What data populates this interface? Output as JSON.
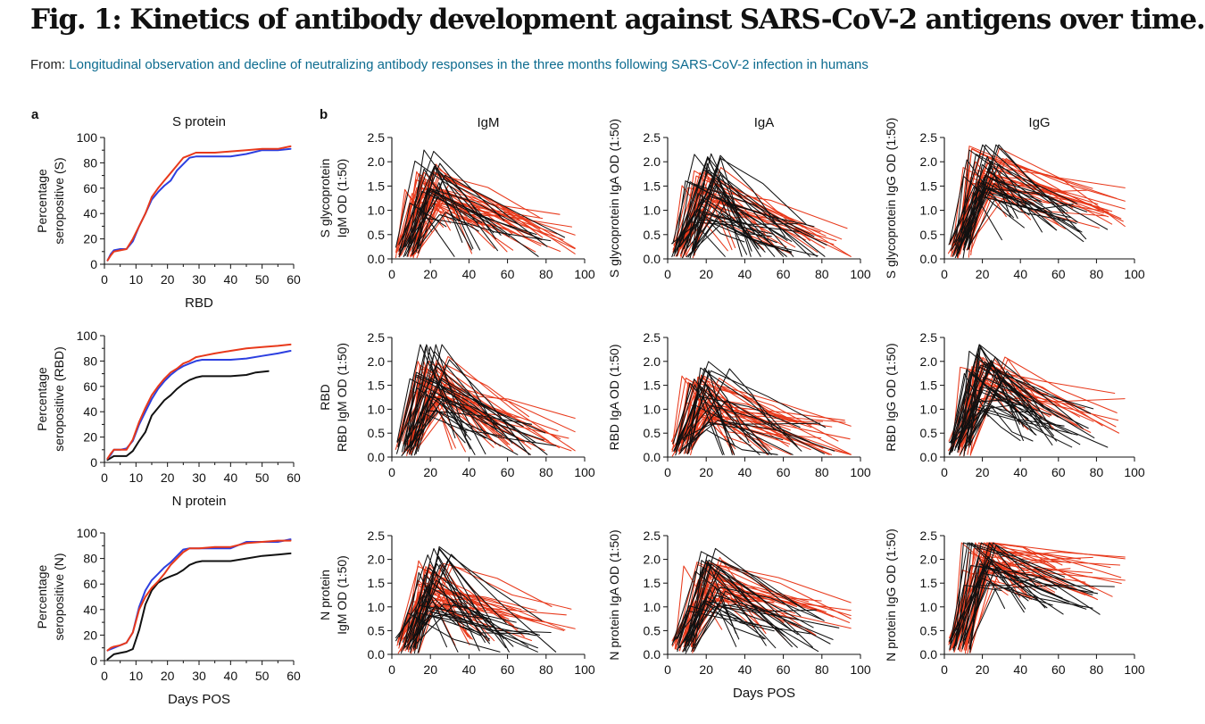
{
  "header": {
    "title": "Fig. 1: Kinetics of antibody development against SARS-CoV-2 antigens over time.",
    "from_label": "From:",
    "source_link": "Longitudinal observation and decline of neutralizing antibody responses in the three months following SARS-CoV-2 infection in humans"
  },
  "panel_labels": {
    "a": "a",
    "b": "b"
  },
  "colors": {
    "red": "#e8391b",
    "blue": "#2c3fe0",
    "black": "#111111"
  },
  "chart_data": [
    {
      "id": "a-s",
      "type": "line",
      "panel": "a",
      "title": "S protein",
      "xlabel": "RBD",
      "ylabel": [
        "Percentage",
        "seropositive (S)"
      ],
      "xlim": [
        0,
        60
      ],
      "ylim": [
        0,
        100
      ],
      "xticks": [
        0,
        10,
        20,
        30,
        40,
        50,
        60
      ],
      "yticks": [
        0,
        20,
        40,
        60,
        80,
        100
      ],
      "series": [
        {
          "color": "red",
          "x": [
            1,
            2,
            3,
            5,
            7,
            9,
            11,
            13,
            15,
            17,
            19,
            21,
            23,
            25,
            27,
            29,
            31,
            35,
            40,
            45,
            50,
            55,
            59
          ],
          "y": [
            3,
            7,
            10,
            11,
            12,
            20,
            30,
            40,
            53,
            60,
            66,
            72,
            78,
            84,
            86,
            88,
            88,
            88,
            89,
            90,
            91,
            91,
            93
          ]
        },
        {
          "color": "blue",
          "x": [
            1,
            2,
            3,
            5,
            7,
            9,
            11,
            13,
            15,
            17,
            19,
            21,
            23,
            25,
            27,
            29,
            31,
            35,
            40,
            45,
            50,
            55,
            59
          ],
          "y": [
            3,
            8,
            11,
            12,
            12,
            18,
            30,
            40,
            51,
            57,
            62,
            66,
            74,
            79,
            84,
            85,
            85,
            85,
            85,
            87,
            90,
            90,
            91
          ]
        }
      ]
    },
    {
      "id": "a-rbd",
      "type": "line",
      "panel": "a",
      "title": "",
      "xlabel": "N protein",
      "ylabel": [
        "Percentage",
        "seropositive (RBD)"
      ],
      "xlim": [
        0,
        60
      ],
      "ylim": [
        0,
        100
      ],
      "xticks": [
        0,
        10,
        20,
        30,
        40,
        50,
        60
      ],
      "yticks": [
        0,
        20,
        40,
        60,
        80,
        100
      ],
      "series": [
        {
          "color": "red",
          "x": [
            1,
            2,
            3,
            5,
            7,
            9,
            11,
            13,
            15,
            17,
            19,
            21,
            23,
            25,
            27,
            29,
            31,
            35,
            40,
            45,
            50,
            55,
            59
          ],
          "y": [
            3,
            7,
            10,
            10,
            10,
            18,
            32,
            43,
            53,
            60,
            66,
            71,
            74,
            78,
            80,
            83,
            84,
            86,
            88,
            90,
            91,
            92,
            93
          ]
        },
        {
          "color": "blue",
          "x": [
            1,
            2,
            3,
            5,
            7,
            9,
            11,
            13,
            15,
            17,
            19,
            21,
            23,
            25,
            27,
            29,
            31,
            35,
            40,
            45,
            50,
            55,
            59
          ],
          "y": [
            3,
            6,
            10,
            10,
            11,
            17,
            30,
            40,
            50,
            58,
            64,
            69,
            73,
            76,
            78,
            80,
            81,
            81,
            81,
            82,
            84,
            86,
            88
          ]
        },
        {
          "color": "black",
          "x": [
            1,
            3,
            5,
            7,
            9,
            11,
            13,
            15,
            17,
            19,
            21,
            23,
            25,
            27,
            29,
            31,
            35,
            40,
            45,
            48,
            52
          ],
          "y": [
            2,
            5,
            5,
            5,
            9,
            17,
            24,
            37,
            43,
            49,
            53,
            58,
            62,
            65,
            67,
            68,
            68,
            68,
            69,
            71,
            72
          ]
        }
      ]
    },
    {
      "id": "a-n",
      "type": "line",
      "panel": "a",
      "title": "",
      "xlabel": "Days POS",
      "ylabel": [
        "Percentage",
        "seropositive (N)"
      ],
      "xlim": [
        0,
        60
      ],
      "ylim": [
        0,
        100
      ],
      "xticks": [
        0,
        10,
        20,
        30,
        40,
        50,
        60
      ],
      "yticks": [
        0,
        20,
        40,
        60,
        80,
        100
      ],
      "series": [
        {
          "color": "red",
          "x": [
            1,
            2,
            3,
            5,
            7,
            9,
            11,
            13,
            15,
            17,
            19,
            21,
            23,
            25,
            27,
            30,
            35,
            40,
            45,
            50,
            55,
            59
          ],
          "y": [
            8,
            10,
            11,
            12,
            14,
            22,
            40,
            50,
            57,
            62,
            68,
            75,
            80,
            85,
            88,
            88,
            89,
            89,
            92,
            93,
            94,
            94
          ]
        },
        {
          "color": "blue",
          "x": [
            1,
            2,
            3,
            5,
            7,
            9,
            11,
            13,
            15,
            17,
            19,
            21,
            23,
            25,
            27,
            30,
            35,
            40,
            45,
            50,
            55,
            59
          ],
          "y": [
            8,
            9,
            10,
            12,
            14,
            22,
            42,
            55,
            63,
            68,
            73,
            77,
            82,
            87,
            88,
            88,
            88,
            88,
            93,
            93,
            93,
            95
          ]
        },
        {
          "color": "black",
          "x": [
            1,
            3,
            5,
            7,
            9,
            11,
            13,
            15,
            17,
            19,
            21,
            23,
            25,
            27,
            29,
            31,
            35,
            40,
            45,
            50,
            55,
            59
          ],
          "y": [
            1,
            5,
            6,
            7,
            9,
            24,
            44,
            55,
            61,
            64,
            66,
            68,
            71,
            75,
            77,
            78,
            78,
            78,
            80,
            82,
            83,
            84
          ]
        }
      ]
    },
    {
      "id": "b-s-igm",
      "type": "line",
      "panel": "b",
      "panel_label": true,
      "title": "IgM",
      "xlabel": "",
      "ylabel": [
        "S glycoprotein",
        "IgM OD (1:50)"
      ],
      "xlim": [
        0,
        100
      ],
      "ylim": [
        0,
        2.5
      ],
      "seed": 11,
      "peak": 1.5,
      "redTail": 0.55,
      "blackTail": 0.35,
      "xticks": [
        0,
        20,
        40,
        60,
        80,
        100
      ],
      "yticks": [
        0,
        0.5,
        1.0,
        1.5,
        2.0,
        2.5
      ]
    },
    {
      "id": "b-s-iga",
      "type": "line",
      "panel": "b",
      "title": "IgA",
      "xlabel": "",
      "ylabel": [
        "S glycoprotein IgA OD (1:50)"
      ],
      "xlim": [
        0,
        100
      ],
      "ylim": [
        0,
        2.5
      ],
      "seed": 23,
      "peak": 1.35,
      "redTail": 0.45,
      "blackTail": 0.3,
      "xticks": [
        0,
        20,
        40,
        60,
        80,
        100
      ],
      "yticks": [
        0,
        0.5,
        1.0,
        1.5,
        2.0,
        2.5
      ]
    },
    {
      "id": "b-s-igg",
      "type": "line",
      "panel": "b",
      "title": "IgG",
      "xlabel": "",
      "ylabel": [
        "S glycoprotein IgG OD (1:50)"
      ],
      "xlim": [
        0,
        100
      ],
      "ylim": [
        0,
        2.5
      ],
      "seed": 37,
      "peak": 1.8,
      "redTail": 1.05,
      "blackTail": 0.75,
      "xticks": [
        0,
        20,
        40,
        60,
        80,
        100
      ],
      "yticks": [
        0,
        0.5,
        1.0,
        1.5,
        2.0,
        2.5
      ]
    },
    {
      "id": "b-rbd-igm",
      "type": "line",
      "panel": "b",
      "title": "",
      "xlabel": "",
      "ylabel": [
        "RBD",
        "RBD IgM OD (1:50)"
      ],
      "xlim": [
        0,
        100
      ],
      "ylim": [
        0,
        2.5
      ],
      "seed": 41,
      "peak": 1.6,
      "redTail": 0.45,
      "blackTail": 0.3,
      "xticks": [
        0,
        20,
        40,
        60,
        80,
        100
      ],
      "yticks": [
        0,
        0.5,
        1.0,
        1.5,
        2.0,
        2.5
      ]
    },
    {
      "id": "b-rbd-iga",
      "type": "line",
      "panel": "b",
      "title": "",
      "xlabel": "",
      "ylabel": [
        "RBD IgA OD (1:50)"
      ],
      "xlim": [
        0,
        100
      ],
      "ylim": [
        0,
        2.5
      ],
      "seed": 53,
      "peak": 1.2,
      "redTail": 0.35,
      "blackTail": 0.3,
      "xticks": [
        0,
        20,
        40,
        60,
        80,
        100
      ],
      "yticks": [
        0,
        0.5,
        1.0,
        1.5,
        2.0,
        2.5
      ]
    },
    {
      "id": "b-rbd-igg",
      "type": "line",
      "panel": "b",
      "title": "",
      "xlabel": "",
      "ylabel": [
        "RBD IgG OD (1:50)"
      ],
      "xlim": [
        0,
        100
      ],
      "ylim": [
        0,
        2.5
      ],
      "seed": 67,
      "peak": 1.6,
      "redTail": 0.95,
      "blackTail": 0.65,
      "xticks": [
        0,
        20,
        40,
        60,
        80,
        100
      ],
      "yticks": [
        0,
        0.5,
        1.0,
        1.5,
        2.0,
        2.5
      ]
    },
    {
      "id": "b-n-igm",
      "type": "line",
      "panel": "b",
      "title": "",
      "xlabel": "",
      "ylabel": [
        "N protein",
        "IgM OD (1:50)"
      ],
      "xlim": [
        0,
        100
      ],
      "ylim": [
        0,
        2.5
      ],
      "seed": 79,
      "peak": 1.45,
      "redTail": 0.6,
      "blackTail": 0.35,
      "xticks": [
        0,
        20,
        40,
        60,
        80,
        100
      ],
      "yticks": [
        0,
        0.5,
        1.0,
        1.5,
        2.0,
        2.5
      ]
    },
    {
      "id": "b-n-iga",
      "type": "line",
      "panel": "b",
      "title": "",
      "xlabel": "Days POS",
      "ylabel": [
        "N protein IgA OD (1:50)"
      ],
      "xlim": [
        0,
        100
      ],
      "ylim": [
        0,
        2.5
      ],
      "seed": 83,
      "peak": 1.5,
      "redTail": 0.7,
      "blackTail": 0.5,
      "xticks": [
        0,
        20,
        40,
        60,
        80,
        100
      ],
      "yticks": [
        0,
        0.5,
        1.0,
        1.5,
        2.0,
        2.5
      ]
    },
    {
      "id": "b-n-igg",
      "type": "line",
      "panel": "b",
      "title": "",
      "xlabel": "",
      "ylabel": [
        "N protein IgG OD (1:50)"
      ],
      "xlim": [
        0,
        100
      ],
      "ylim": [
        0,
        2.5
      ],
      "seed": 97,
      "peak": 2.05,
      "redTail": 1.6,
      "blackTail": 1.2,
      "xticks": [
        0,
        20,
        40,
        60,
        80,
        100
      ],
      "yticks": [
        0,
        0.5,
        1.0,
        1.5,
        2.0,
        2.5
      ]
    }
  ]
}
